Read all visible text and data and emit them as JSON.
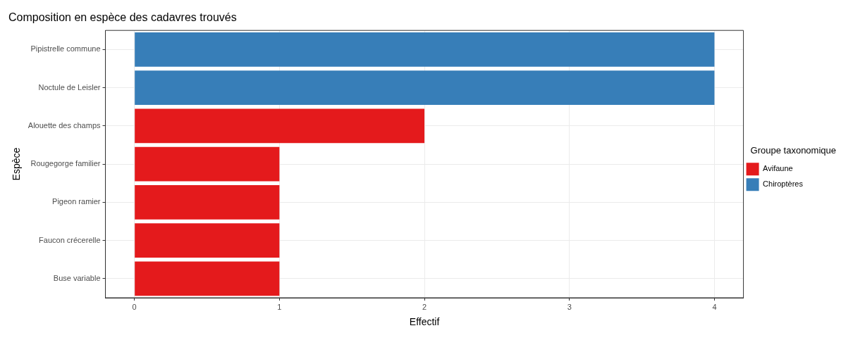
{
  "chart_data": {
    "type": "bar",
    "orientation": "horizontal",
    "title": "Composition en espèce des cadavres trouvés",
    "xlabel": "Effectif",
    "ylabel": "Espèce",
    "legend_title": "Groupe taxonomique",
    "legend": "right",
    "grid": true,
    "categories": [
      "Pipistrelle commune",
      "Noctule de Leisler",
      "Alouette des champs",
      "Rougegorge familier",
      "Pigeon ramier",
      "Faucon crécerelle",
      "Buse variable"
    ],
    "series": [
      {
        "name": "Avifaune",
        "color": "#e41a1c",
        "values": [
          null,
          null,
          2,
          1,
          1,
          1,
          1
        ]
      },
      {
        "name": "Chiroptères",
        "color": "#377eb8",
        "values": [
          4,
          4,
          null,
          null,
          null,
          null,
          null
        ]
      }
    ],
    "xlim": [
      -0.2,
      4.2
    ],
    "xticks": [
      0,
      1,
      2,
      3,
      4
    ]
  }
}
